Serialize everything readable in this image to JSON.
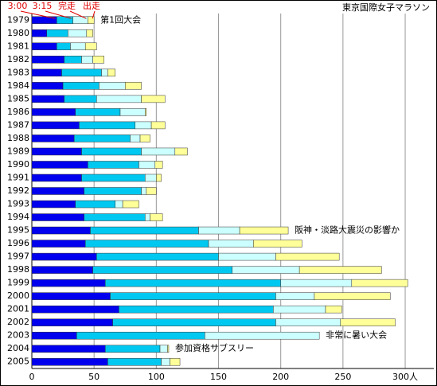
{
  "chart_data": {
    "type": "stacked-hbar",
    "title": "東京国際女子マラソン",
    "categories": [
      "1979",
      "1980",
      "1981",
      "1982",
      "1983",
      "1984",
      "1985",
      "1986",
      "1987",
      "1988",
      "1989",
      "1990",
      "1991",
      "1992",
      "1993",
      "1994",
      "1995",
      "1996",
      "1997",
      "1998",
      "1999",
      "2000",
      "2001",
      "2002",
      "2003",
      "2004",
      "2005"
    ],
    "series": [
      {
        "name": "3:00",
        "color": "#0000ee",
        "values": [
          20,
          12,
          20,
          26,
          24,
          25,
          26,
          35,
          38,
          34,
          40,
          45,
          40,
          42,
          35,
          42,
          47,
          43,
          52,
          49,
          59,
          63,
          70,
          65,
          36,
          59,
          61
        ]
      },
      {
        "name": "3:15",
        "color": "#00c8f0",
        "values": [
          13,
          17,
          11,
          14,
          32,
          29,
          26,
          36,
          45,
          45,
          48,
          41,
          51,
          46,
          32,
          49,
          87,
          99,
          98,
          112,
          141,
          133,
          124,
          131,
          103,
          44,
          43
        ]
      },
      {
        "name": "完走",
        "color": "#ccffff",
        "values": [
          12,
          15,
          12,
          9,
          5,
          21,
          36,
          20,
          13,
          8,
          27,
          13,
          9,
          4,
          6,
          4,
          33,
          36,
          46,
          54,
          57,
          31,
          42,
          52,
          92,
          6,
          7
        ]
      },
      {
        "name": "出走",
        "color": "#ffff99",
        "values": [
          5,
          5,
          9,
          9,
          6,
          13,
          19,
          1,
          11,
          8,
          10,
          6,
          4,
          8,
          13,
          10,
          39,
          39,
          51,
          66,
          45,
          61,
          13,
          44,
          0,
          1,
          8
        ]
      }
    ],
    "xlim": [
      0,
      323
    ],
    "xticks": [
      0,
      50,
      100,
      150,
      200,
      250,
      {
        "value": 300,
        "label": "300人"
      }
    ],
    "grid": true,
    "annotations": [
      {
        "text": "第1回大会",
        "category": "1979"
      },
      {
        "text": "阪神・淡路大震災の影響か",
        "category": "1995"
      },
      {
        "text": "非常に暑い大会",
        "category": "2003"
      },
      {
        "text": "参加資格サブスリー",
        "category": "2004"
      }
    ]
  }
}
